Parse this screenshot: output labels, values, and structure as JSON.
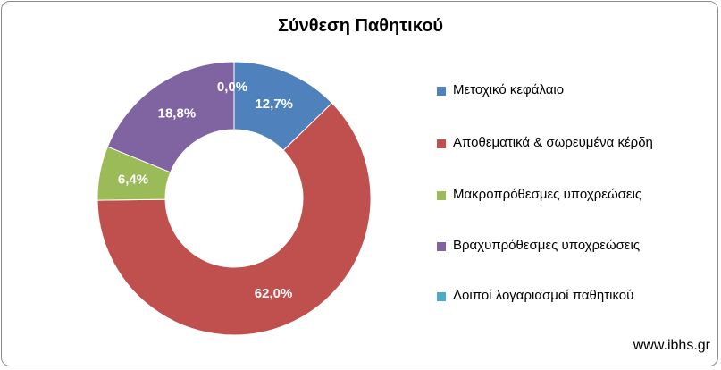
{
  "chart_data": {
    "type": "pie",
    "title": "Σύνθεση Παθητικού",
    "categories": [
      "Μετοχικό κεφάλαιο",
      "Αποθεματικά & σωρευμένα κέρδη",
      "Μακροπρόθεσμες υποχρεώσεις",
      "Βραχυπρόθεσμες υποχρεώσεις",
      "Λοιποί λογαριασμοί παθητικού"
    ],
    "values": [
      12.7,
      62.0,
      6.4,
      18.8,
      0.0
    ],
    "value_labels": [
      "12,7%",
      "62,0%",
      "6,4%",
      "18,8%",
      "0,0%"
    ],
    "colors": [
      "#4f81bd",
      "#c0504d",
      "#9bbb59",
      "#8064a2",
      "#4bacc6"
    ],
    "legend_placement": "right",
    "donut": true
  },
  "watermark": "www.ibhs.gr"
}
